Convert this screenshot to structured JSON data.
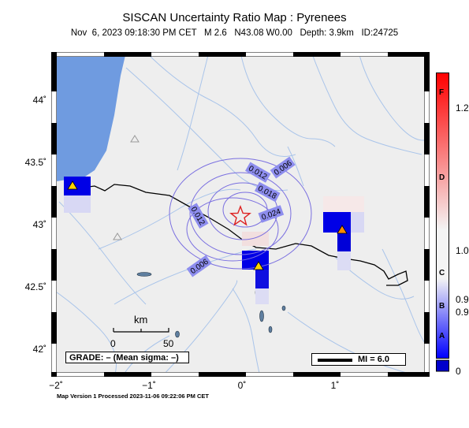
{
  "header": {
    "title": "SISCAN Uncertainty Ratio Map : Pyrenees",
    "subtitle": "Nov  6, 2023 09:18:30 PM CET   M 2.6   N43.08 W0.00   Depth: 3.9km   ID:24725"
  },
  "axes": {
    "x_labels": [
      "−2˚",
      "−1˚",
      "0˚",
      "1˚"
    ],
    "y_labels": [
      "44˚",
      "43.5˚",
      "43˚",
      "42.5˚",
      "42˚"
    ]
  },
  "contours": {
    "labels": [
      "0.006",
      "0.012",
      "0.018",
      "0.024",
      "0.012",
      "0.006"
    ]
  },
  "scale_bar": {
    "unit": "km",
    "ticks": [
      "0",
      "50"
    ]
  },
  "grade_box": {
    "text": "GRADE: – (Mean sigma: –)"
  },
  "legend_box": {
    "text": "MI = 6.0"
  },
  "colorbar": {
    "letters": [
      "F",
      "D",
      "C",
      "B",
      "A"
    ],
    "values": [
      "1.2",
      "1.0",
      "0.9",
      "0.9",
      "0"
    ],
    "colors": {
      "top": "#ff0000",
      "mid": "#f4f4f4",
      "bottom": "#0000ff"
    }
  },
  "footer": {
    "text": "Map Version 1 Processed 2023-11-06 09:22:06 PM CET"
  },
  "colors": {
    "sea": "#6f9be0",
    "land": "#eeeeee",
    "river": "#a9c4ea",
    "epicenter": "#dd2222",
    "contour": "#7a6fe0",
    "station": "#ffd400"
  }
}
